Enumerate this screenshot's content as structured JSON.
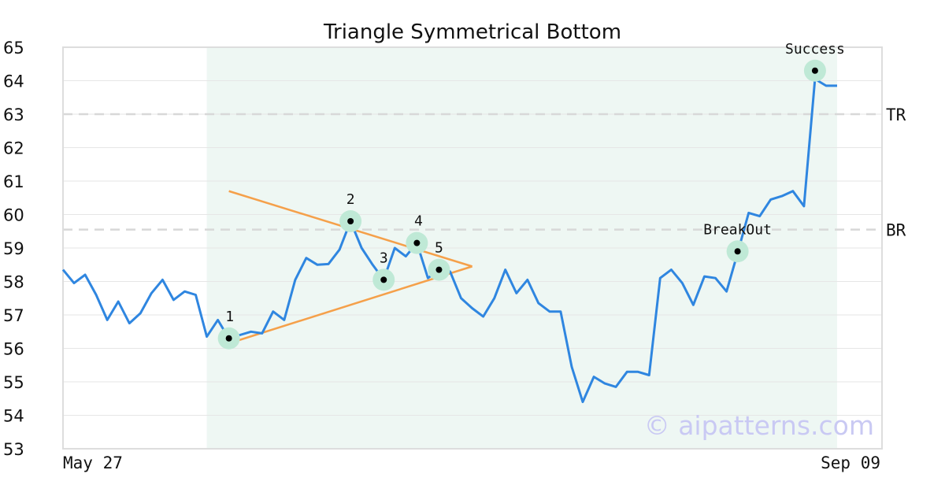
{
  "chart_data": {
    "type": "line",
    "title": "Triangle Symmetrical Bottom",
    "xlabel": "",
    "ylabel": "",
    "ylim": [
      53,
      65
    ],
    "yticks": [
      53,
      54,
      55,
      56,
      57,
      58,
      59,
      60,
      61,
      62,
      63,
      64,
      65
    ],
    "x_tick_labels": [
      "May 27",
      "Sep 09"
    ],
    "grid": true,
    "colors": {
      "line": "#2f86e0",
      "trendline": "#f5a04a",
      "highlight_band": "#eef7f3",
      "marker_halo": "#bfe9d6",
      "reference_line": "#d8d8d8",
      "frame": "#dddddd"
    },
    "highlight_range_index": [
      13,
      70
    ],
    "series": [
      {
        "values": [
          58.35,
          57.95,
          58.2,
          57.6,
          56.85,
          57.4,
          56.75,
          57.05,
          57.65,
          58.05,
          57.45,
          57.7,
          57.6,
          56.35,
          56.85,
          56.3,
          56.4,
          56.5,
          56.45,
          57.1,
          56.85,
          58.05,
          58.7,
          58.5,
          58.52,
          58.95,
          59.8,
          59.0,
          58.5,
          58.05,
          59.0,
          58.75,
          59.15,
          58.1,
          58.35,
          58.3,
          57.5,
          57.2,
          56.95,
          57.5,
          58.35,
          57.65,
          58.05,
          57.35,
          57.1,
          57.1,
          55.45,
          54.4,
          55.15,
          54.95,
          54.85,
          55.3,
          55.3,
          55.2,
          58.1,
          58.35,
          57.95,
          57.3,
          58.15,
          58.1,
          57.7,
          58.85,
          60.05,
          59.95,
          60.45,
          60.55,
          60.7,
          60.25,
          64.05,
          63.85,
          63.85
        ]
      }
    ],
    "reference_lines": [
      {
        "label": "TR",
        "value": 63.0
      },
      {
        "label": "BR",
        "value": 59.55
      }
    ],
    "trendlines": [
      {
        "from": [
          15,
          60.7
        ],
        "to": [
          37,
          58.45
        ]
      },
      {
        "from": [
          15,
          56.15
        ],
        "to": [
          37,
          58.45
        ]
      }
    ],
    "points": [
      {
        "label": "1",
        "index": 15,
        "value": 56.3
      },
      {
        "label": "2",
        "index": 26,
        "value": 59.8
      },
      {
        "label": "3",
        "index": 29,
        "value": 58.05
      },
      {
        "label": "4",
        "index": 32,
        "value": 59.15
      },
      {
        "label": "5",
        "index": 34,
        "value": 58.35
      },
      {
        "label": "BreakOut",
        "index": 61,
        "value": 58.9
      },
      {
        "label": "Success",
        "index": 68,
        "value": 64.3
      }
    ]
  },
  "watermark": "© aipatterns.com"
}
